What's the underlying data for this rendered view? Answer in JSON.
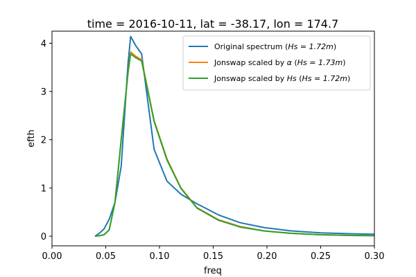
{
  "chart_data": {
    "type": "line",
    "title": "time = 2016-10-11, lat = -38.17, lon = 174.7",
    "xlabel": "freq",
    "ylabel": "efth",
    "xlim": [
      0.0,
      0.3
    ],
    "ylim": [
      -0.2,
      4.25
    ],
    "xticks": [
      0.0,
      0.05,
      0.1,
      0.15,
      0.2,
      0.25,
      0.3
    ],
    "xtick_labels": [
      "0.00",
      "0.05",
      "0.10",
      "0.15",
      "0.20",
      "0.25",
      "0.30"
    ],
    "yticks": [
      0,
      1,
      2,
      3,
      4
    ],
    "ytick_labels": [
      "0",
      "1",
      "2",
      "3",
      "4"
    ],
    "grid": false,
    "legend_position": "top-right",
    "series": [
      {
        "name": "Original spectrum (Hs = 1.72m)",
        "legend_prefix": "Original spectrum (",
        "legend_math": "Hs = 1.72m",
        "legend_suffix": ")",
        "color": "#1f77b4",
        "x": [
          0.04,
          0.044,
          0.0484,
          0.0532,
          0.0586,
          0.0644,
          0.0708,
          0.0732,
          0.0779,
          0.0834,
          0.095,
          0.107,
          0.12,
          0.135,
          0.155,
          0.175,
          0.197,
          0.222,
          0.25,
          0.28,
          0.3
        ],
        "y": [
          0.0,
          0.06,
          0.15,
          0.35,
          0.7,
          1.45,
          3.6,
          4.14,
          3.95,
          3.78,
          1.8,
          1.14,
          0.87,
          0.67,
          0.44,
          0.28,
          0.18,
          0.11,
          0.07,
          0.05,
          0.04
        ]
      },
      {
        "name": "Jonswap scaled by α (Hs = 1.73m)",
        "legend_prefix": "Jonswap scaled by ",
        "legend_alpha": "α",
        "legend_mid": " (",
        "legend_math": "Hs = 1.73m",
        "legend_suffix": ")",
        "color": "#ff7f0e",
        "x": [
          0.04,
          0.044,
          0.0484,
          0.0532,
          0.0586,
          0.0644,
          0.0708,
          0.0732,
          0.0779,
          0.0834,
          0.095,
          0.107,
          0.12,
          0.135,
          0.155,
          0.175,
          0.197,
          0.222,
          0.25,
          0.28,
          0.3
        ],
        "y": [
          0.0,
          0.01,
          0.03,
          0.13,
          0.7,
          2.0,
          3.4,
          3.82,
          3.73,
          3.66,
          2.4,
          1.6,
          1.0,
          0.59,
          0.34,
          0.2,
          0.11,
          0.06,
          0.03,
          0.015,
          0.01
        ]
      },
      {
        "name": "Jonswap scaled by Hs (Hs = 1.72m)",
        "legend_prefix": "Jonswap scaled by ",
        "legend_math": "Hs",
        "legend_mid": " (",
        "legend_math2": "Hs = 1.72m",
        "legend_suffix": ")",
        "color": "#2ca02c",
        "x": [
          0.04,
          0.044,
          0.0484,
          0.0532,
          0.0586,
          0.0644,
          0.0708,
          0.0732,
          0.0779,
          0.0834,
          0.095,
          0.107,
          0.12,
          0.135,
          0.155,
          0.175,
          0.197,
          0.222,
          0.25,
          0.28,
          0.3
        ],
        "y": [
          0.0,
          0.01,
          0.03,
          0.13,
          0.7,
          2.0,
          3.4,
          3.78,
          3.7,
          3.63,
          2.38,
          1.58,
          0.99,
          0.58,
          0.33,
          0.19,
          0.11,
          0.06,
          0.03,
          0.015,
          0.01
        ]
      }
    ]
  }
}
